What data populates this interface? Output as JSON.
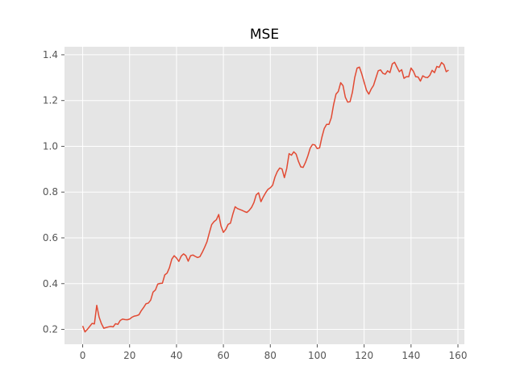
{
  "chart_data": {
    "type": "line",
    "title": "MSE",
    "xlabel": "",
    "ylabel": "",
    "xlim": [
      -7.75,
      162.75
    ],
    "ylim": [
      0.135,
      1.435
    ],
    "x_ticks": [
      0,
      20,
      40,
      60,
      80,
      100,
      120,
      140,
      160
    ],
    "y_ticks": [
      0.2,
      0.4,
      0.6,
      0.8,
      1.0,
      1.2,
      1.4
    ],
    "y_tick_labels": [
      "0.2",
      "0.4",
      "0.6",
      "0.8",
      "1.0",
      "1.2",
      "1.4"
    ],
    "grid": true,
    "style": "ggplot",
    "colors": {
      "background": "#e5e5e5",
      "grid": "#ffffff",
      "line": "#e24a33",
      "tick_text": "#555555"
    },
    "series": [
      {
        "values": [
          0.215,
          0.189,
          0.2,
          0.213,
          0.226,
          0.224,
          0.305,
          0.254,
          0.225,
          0.205,
          0.208,
          0.211,
          0.213,
          0.211,
          0.225,
          0.222,
          0.239,
          0.245,
          0.243,
          0.242,
          0.245,
          0.253,
          0.258,
          0.26,
          0.264,
          0.282,
          0.296,
          0.312,
          0.315,
          0.328,
          0.363,
          0.372,
          0.398,
          0.401,
          0.402,
          0.438,
          0.446,
          0.47,
          0.507,
          0.522,
          0.512,
          0.497,
          0.52,
          0.53,
          0.522,
          0.498,
          0.522,
          0.525,
          0.519,
          0.514,
          0.518,
          0.537,
          0.559,
          0.583,
          0.622,
          0.658,
          0.671,
          0.679,
          0.702,
          0.651,
          0.624,
          0.637,
          0.659,
          0.664,
          0.703,
          0.736,
          0.728,
          0.724,
          0.72,
          0.715,
          0.711,
          0.72,
          0.733,
          0.754,
          0.788,
          0.797,
          0.758,
          0.779,
          0.797,
          0.812,
          0.819,
          0.83,
          0.866,
          0.89,
          0.905,
          0.901,
          0.863,
          0.903,
          0.968,
          0.961,
          0.976,
          0.966,
          0.934,
          0.91,
          0.908,
          0.93,
          0.958,
          0.992,
          1.008,
          1.006,
          0.99,
          0.993,
          1.04,
          1.078,
          1.096,
          1.096,
          1.125,
          1.183,
          1.228,
          1.24,
          1.278,
          1.265,
          1.214,
          1.193,
          1.195,
          1.236,
          1.301,
          1.342,
          1.346,
          1.316,
          1.28,
          1.245,
          1.228,
          1.25,
          1.266,
          1.298,
          1.33,
          1.334,
          1.319,
          1.315,
          1.33,
          1.322,
          1.36,
          1.367,
          1.346,
          1.326,
          1.335,
          1.297,
          1.304,
          1.304,
          1.342,
          1.328,
          1.304,
          1.303,
          1.285,
          1.308,
          1.302,
          1.3,
          1.31,
          1.332,
          1.322,
          1.349,
          1.345,
          1.366,
          1.357,
          1.326,
          1.333
        ]
      }
    ]
  }
}
